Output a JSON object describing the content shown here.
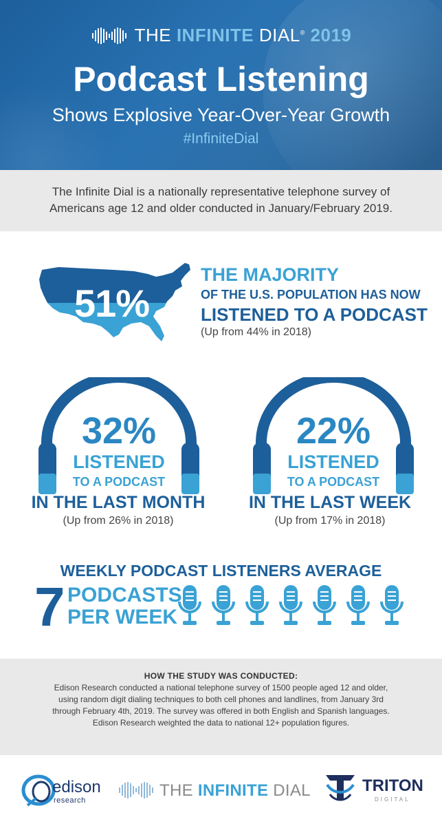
{
  "header": {
    "brand_pre": "THE ",
    "brand_accent": "INFINITE",
    "brand_post": " DIAL",
    "brand_reg": "®",
    "brand_year": " 2019",
    "title": "Podcast Listening",
    "subtitle": "Shows Explosive Year-Over-Year Growth",
    "hashtag": "#InfiniteDial"
  },
  "intro": {
    "line1": "The Infinite Dial is a nationally representative telephone survey of",
    "line2": "Americans age 12 and older conducted in January/February 2019."
  },
  "majority": {
    "percent": "51%",
    "line1": "THE MAJORITY",
    "line2": "OF THE U.S. POPULATION HAS NOW",
    "line3": "LISTENED TO A PODCAST",
    "note": "(Up from 44% in 2018)"
  },
  "monthly": {
    "percent": "32%",
    "listened": "LISTENED",
    "to_a_podcast": "TO A PODCAST",
    "period": "IN THE LAST MONTH",
    "note": "(Up from 26% in 2018)"
  },
  "weekly_stat": {
    "percent": "22%",
    "listened": "LISTENED",
    "to_a_podcast": "TO A PODCAST",
    "period": "IN THE LAST WEEK",
    "note": "(Up from 17% in 2018)"
  },
  "weekly_average": {
    "heading": "WEEKLY PODCAST LISTENERS AVERAGE",
    "count": "7",
    "line1": "PODCASTS",
    "line2": "PER WEEK",
    "mic_count": 7
  },
  "methodology": {
    "heading": "HOW THE STUDY WAS CONDUCTED:",
    "line1": "Edison Research conducted a national telephone survey of 1500 people aged 12 and older,",
    "line2": "using random digit dialing techniques to both cell phones and landlines, from January 3rd",
    "line3": "through February 4th, 2019. The survey was offered in both English and Spanish languages.",
    "line4": "Edison Research weighted the data to national 12+ population figures."
  },
  "footer": {
    "edison_word": "edison",
    "edison_sub": "research",
    "dial_pre": "THE ",
    "dial_accent": "INFINITE",
    "dial_post": " DIAL",
    "triton_word": "TRITON",
    "triton_sub": "DIGITAL"
  },
  "colors": {
    "header_blue": "#2a73b3",
    "dark_blue": "#1d5f9a",
    "light_blue": "#3aa2d4",
    "panel_gray": "#e9e9ea"
  },
  "icons": [
    "infinity-dial-logo",
    "usa-map-icon",
    "headphones-icon",
    "microphone-icon",
    "edison-logo",
    "triton-logo"
  ]
}
